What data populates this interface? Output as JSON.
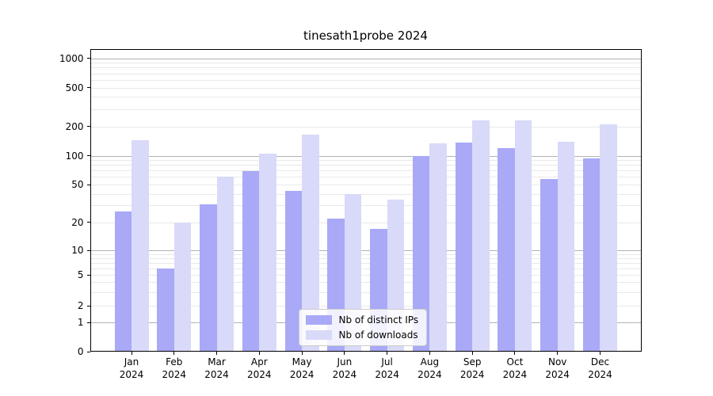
{
  "chart_data": {
    "type": "bar",
    "title": "tinesath1probe 2024",
    "categories": [
      "Jan 2024",
      "Feb 2024",
      "Mar 2024",
      "Apr 2024",
      "May 2024",
      "Jun 2024",
      "Jul 2024",
      "Aug 2024",
      "Sep 2024",
      "Oct 2024",
      "Nov 2024",
      "Dec 2024"
    ],
    "series": [
      {
        "name": "Nb of distinct IPs",
        "color": "#a9a9f7",
        "values": [
          26,
          6,
          31,
          69,
          43,
          22,
          17,
          100,
          137,
          119,
          57,
          94
        ]
      },
      {
        "name": "Nb of downloads",
        "color": "#d9d9f9",
        "values": [
          145,
          20,
          61,
          105,
          165,
          40,
          35,
          133,
          230,
          230,
          138,
          208
        ]
      }
    ],
    "yscale": "symlog",
    "y_tick_labels": [
      0,
      1,
      2,
      5,
      10,
      20,
      50,
      100,
      200,
      500,
      1000
    ],
    "ylim": [
      0,
      1300
    ],
    "xlabel": "",
    "ylabel": "",
    "grid": true,
    "legend_position": "lower center"
  },
  "colors": {
    "bar_distinct_ips": "#a9a9f7",
    "bar_downloads": "#d9d9f9",
    "grid_major": "#b2b2b2",
    "grid_minor": "#e9e9e9",
    "axis": "#000000",
    "legend_border": "#cccccc"
  }
}
